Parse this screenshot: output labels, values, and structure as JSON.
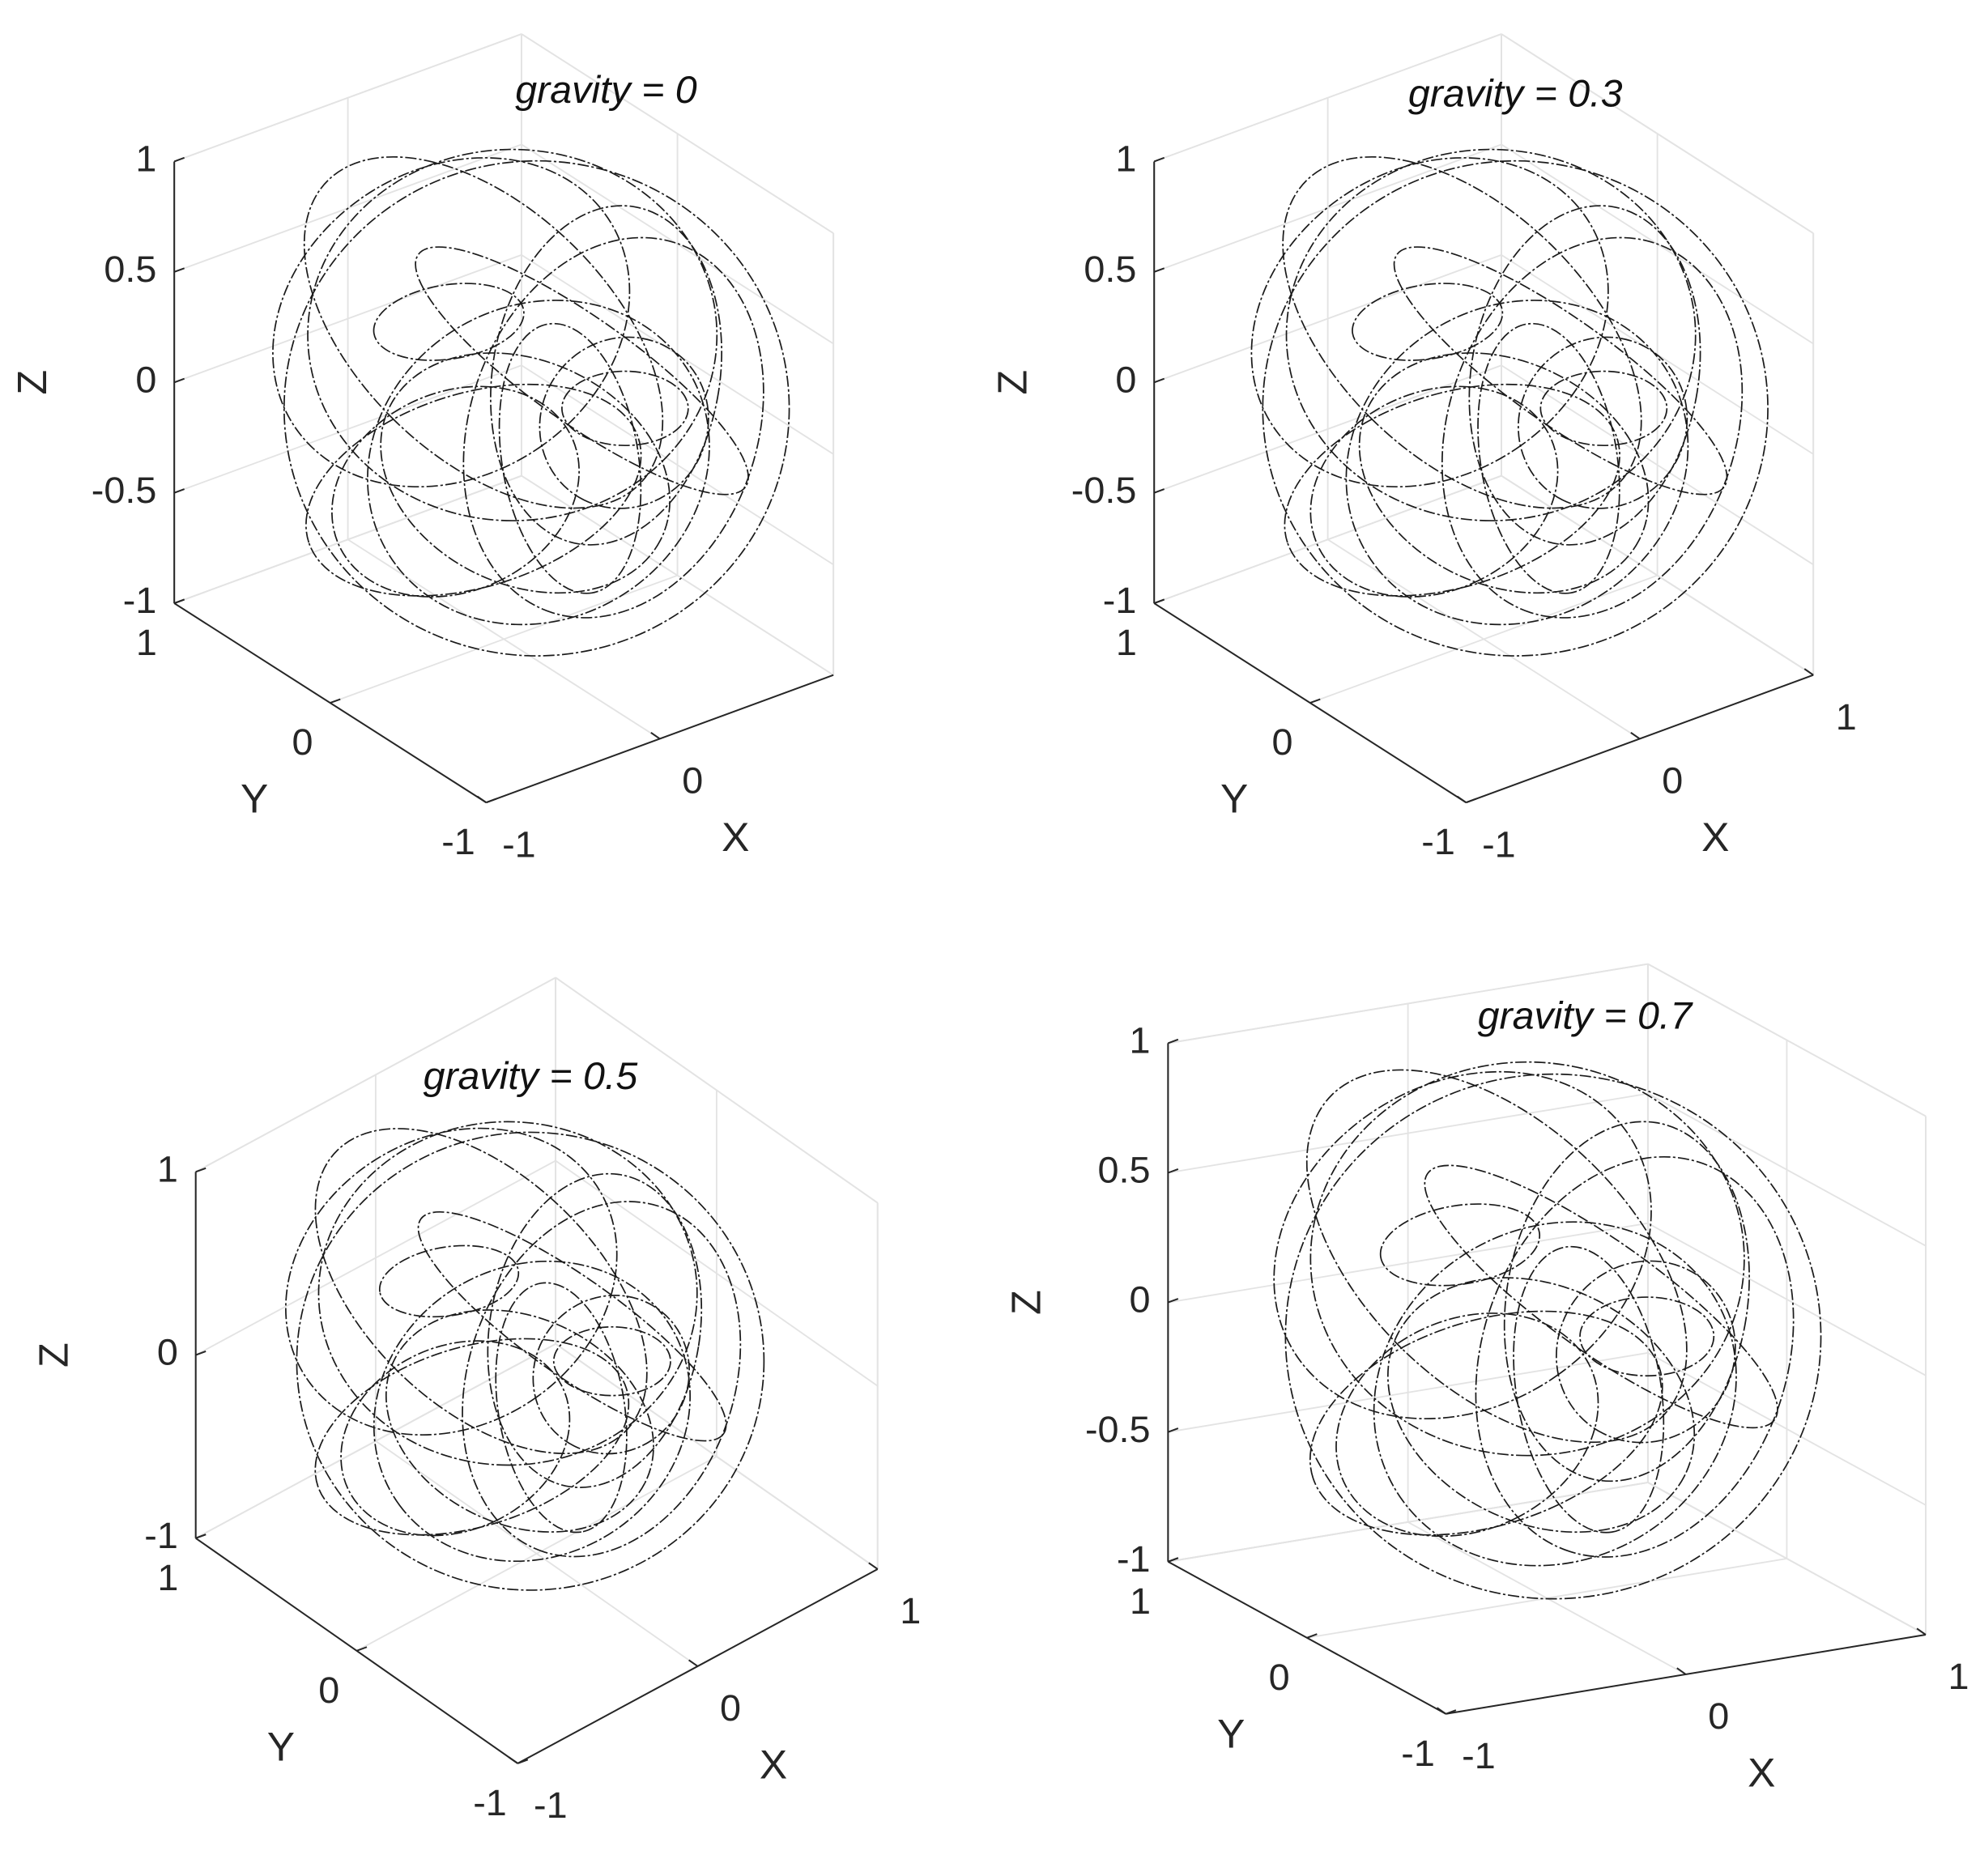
{
  "chart_data": [
    {
      "type": "line3d",
      "title": "gravity = 0",
      "xlabel": "X",
      "ylabel": "Y",
      "zlabel": "Z",
      "xlim": [
        -1,
        1
      ],
      "ylim": [
        -1,
        1
      ],
      "zlim": [
        -1,
        1
      ],
      "xticks": [
        -1,
        0
      ],
      "yticks": [
        -1,
        0,
        1
      ],
      "zticks": [
        -1,
        -0.5,
        0,
        0.5,
        1
      ],
      "grid": true
    },
    {
      "type": "line3d",
      "title": "gravity = 0.3",
      "xlabel": "X",
      "ylabel": "Y",
      "zlabel": "Z",
      "xlim": [
        -1,
        1
      ],
      "ylim": [
        -1,
        1
      ],
      "zlim": [
        -1,
        1
      ],
      "xticks": [
        -1,
        0,
        1
      ],
      "yticks": [
        -1,
        0,
        1
      ],
      "zticks": [
        -1,
        -0.5,
        0,
        0.5,
        1
      ],
      "grid": true
    },
    {
      "type": "line3d",
      "title": "gravity = 0.5",
      "xlabel": "X",
      "ylabel": "Y",
      "zlabel": "Z",
      "xlim": [
        -1,
        1
      ],
      "ylim": [
        -1,
        1
      ],
      "zlim": [
        -1,
        1
      ],
      "xticks": [
        -1,
        0,
        1
      ],
      "yticks": [
        -1,
        0,
        1
      ],
      "zticks": [
        -1,
        0,
        1
      ],
      "grid": true
    },
    {
      "type": "line3d",
      "title": "gravity = 0.7",
      "xlabel": "X",
      "ylabel": "Y",
      "zlabel": "Z",
      "xlim": [
        -1,
        1
      ],
      "ylim": [
        -1,
        1
      ],
      "zlim": [
        -1,
        1
      ],
      "xticks": [
        -1,
        0,
        1
      ],
      "yticks": [
        -1,
        0,
        1
      ],
      "zticks": [
        -1,
        -0.5,
        0,
        0.5,
        1
      ],
      "grid": true
    }
  ]
}
